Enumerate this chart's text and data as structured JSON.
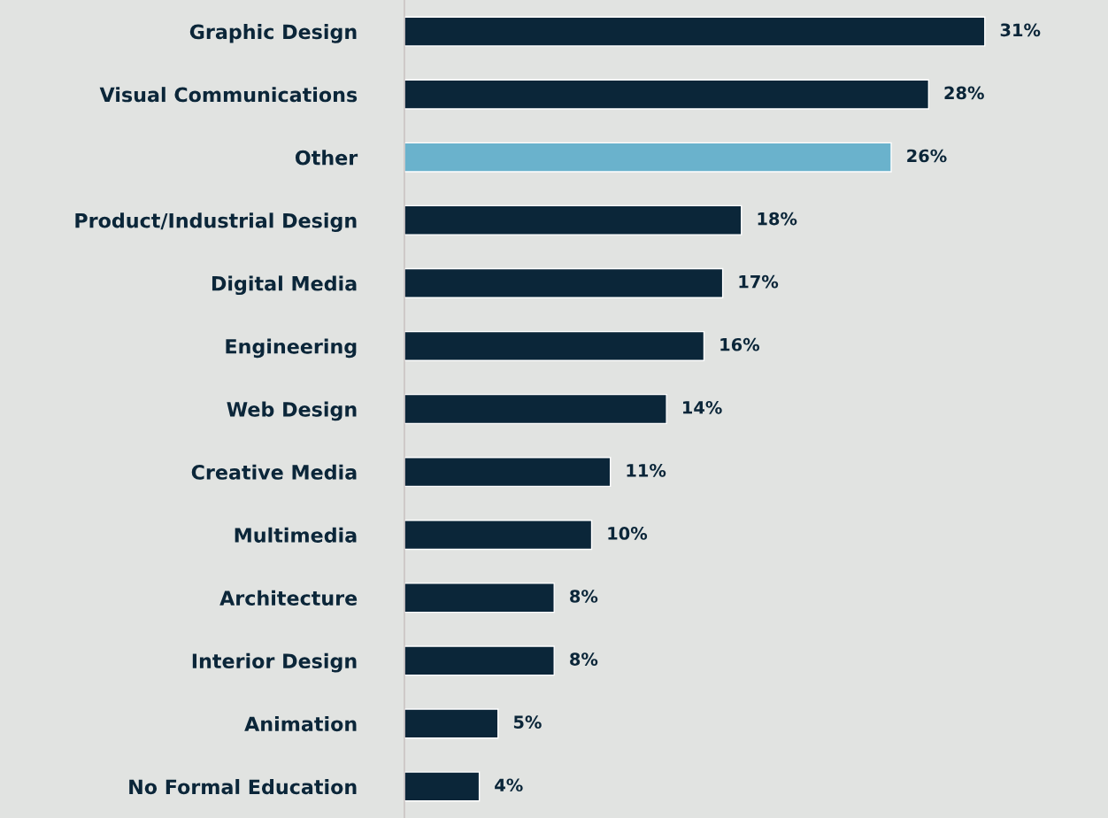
{
  "chart_data": {
    "type": "bar",
    "orientation": "horizontal",
    "tick_labels": "y",
    "categories": [
      "Graphic Design",
      "Visual Communications",
      "Other",
      "Product/Industrial Design",
      "Digital Media",
      "Engineering",
      "Web Design",
      "Creative Media",
      "Multimedia",
      "Architecture",
      "Interior Design",
      "Animation",
      "No Formal Education"
    ],
    "values": [
      31,
      28,
      26,
      18,
      17,
      16,
      14,
      11,
      10,
      8,
      8,
      5,
      4
    ],
    "colors": [
      "#0b2639",
      "#0b2639",
      "#6ab2cc",
      "#0b2639",
      "#0b2639",
      "#0b2639",
      "#0b2639",
      "#0b2639",
      "#0b2639",
      "#0b2639",
      "#0b2639",
      "#0b2639",
      "#0b2639"
    ],
    "value_labels": [
      "31%",
      "28%",
      "26%",
      "18%",
      "17%",
      "16%",
      "14%",
      "11%",
      "10%",
      "8%",
      "8%",
      "5%",
      "4%"
    ]
  }
}
